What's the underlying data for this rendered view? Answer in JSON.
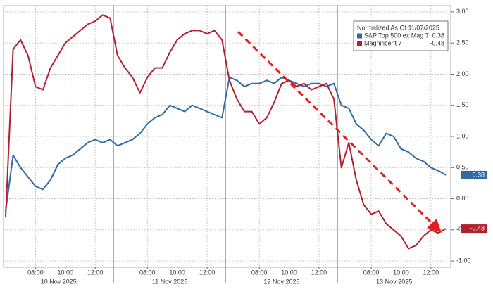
{
  "chart_data": {
    "type": "line",
    "legend_title": "Normalized As Of 11/07/2025",
    "categories": [
      null,
      null,
      null,
      null,
      "08:00",
      null,
      null,
      null,
      "10:00",
      null,
      null,
      null,
      "12:00",
      null,
      null,
      null,
      null,
      null,
      null,
      "08:00",
      null,
      null,
      null,
      "10:00",
      null,
      null,
      null,
      "12:00",
      null,
      null,
      null,
      null,
      null,
      null,
      "08:00",
      null,
      null,
      null,
      "10:00",
      null,
      null,
      null,
      "12:00",
      null,
      null,
      null,
      null,
      null,
      null,
      "08:00",
      null,
      null,
      null,
      "10:00",
      null,
      null,
      null,
      "12:00",
      null,
      null
    ],
    "day_labels": [
      "10 Nov 2025",
      "11 Nov 2025",
      "12 Nov 2025",
      "13 Nov 2025"
    ],
    "series": [
      {
        "name": "S&P Top 500 ex Mag 7",
        "color": "#2f6aa3",
        "values": [
          -0.2,
          0.7,
          0.5,
          0.35,
          0.2,
          0.15,
          0.3,
          0.55,
          0.65,
          0.7,
          0.8,
          0.9,
          0.95,
          0.9,
          0.95,
          0.85,
          0.9,
          0.95,
          1.05,
          1.2,
          1.3,
          1.35,
          1.5,
          1.45,
          1.4,
          1.5,
          1.45,
          1.4,
          1.35,
          1.3,
          1.95,
          1.9,
          1.8,
          1.85,
          1.85,
          1.9,
          1.85,
          1.95,
          1.9,
          1.85,
          1.8,
          1.85,
          1.85,
          1.8,
          1.85,
          1.5,
          1.45,
          1.2,
          1.1,
          0.95,
          0.85,
          1.05,
          1.0,
          0.8,
          0.75,
          0.65,
          0.6,
          0.5,
          0.45,
          0.38
        ]
      },
      {
        "name": "Magnificent 7",
        "color": "#b0202f",
        "values": [
          -0.3,
          2.4,
          2.55,
          2.3,
          1.8,
          1.75,
          2.1,
          2.3,
          2.5,
          2.6,
          2.7,
          2.8,
          2.85,
          2.95,
          2.9,
          2.3,
          2.1,
          1.95,
          1.7,
          1.95,
          2.1,
          2.1,
          2.35,
          2.55,
          2.65,
          2.7,
          2.7,
          2.65,
          2.7,
          2.55,
          1.9,
          1.6,
          1.4,
          1.4,
          1.2,
          1.3,
          1.55,
          1.85,
          1.9,
          1.8,
          1.85,
          1.75,
          1.8,
          1.85,
          1.6,
          0.5,
          0.9,
          0.3,
          -0.1,
          -0.25,
          -0.2,
          -0.4,
          -0.5,
          -0.6,
          -0.8,
          -0.75,
          -0.6,
          -0.5,
          -0.55,
          -0.48
        ]
      }
    ],
    "ylim": [
      -1.1,
      3.1
    ],
    "yticks": [
      {
        "value": 3,
        "label": "3.00"
      },
      {
        "value": 2.5,
        "label": "2.50"
      },
      {
        "value": 2,
        "label": "2.00"
      },
      {
        "value": 1.5,
        "label": "1.50"
      },
      {
        "value": 1,
        "label": "1.00"
      },
      {
        "value": 0.5,
        "label": "0.50"
      },
      {
        "value": 0,
        "label": "0.00"
      },
      {
        "value": -0.5,
        "label": "-0.50"
      },
      {
        "value": -1,
        "label": "-1.00"
      }
    ],
    "grid": true
  }
}
